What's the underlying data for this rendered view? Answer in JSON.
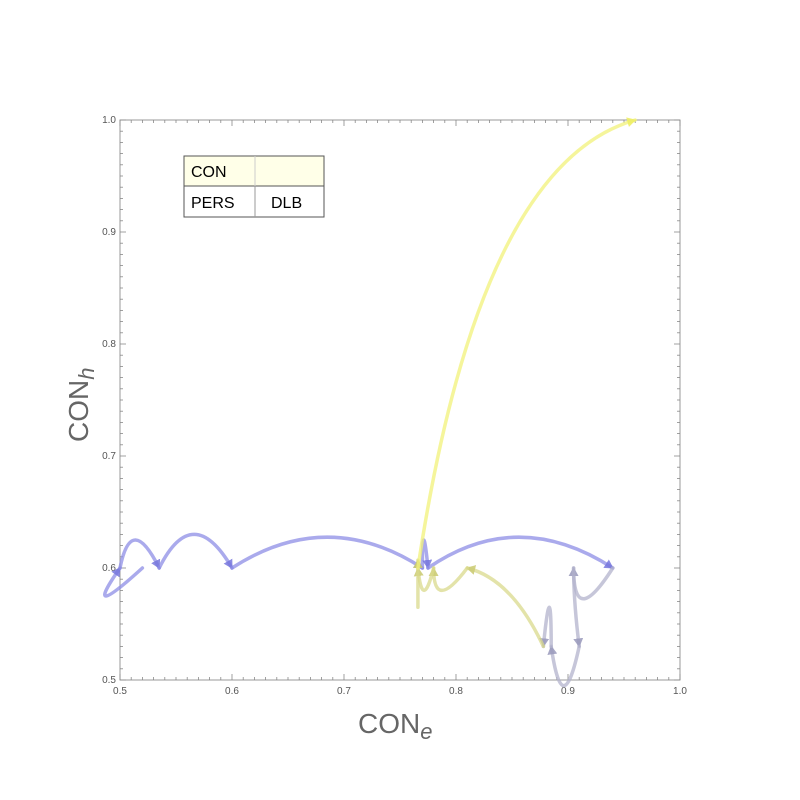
{
  "chart_data": {
    "type": "line",
    "title": "",
    "xlabel": {
      "main": "CON",
      "sub": "e"
    },
    "ylabel": {
      "main": "CON",
      "sub": "h"
    },
    "xlim": [
      0.5,
      1.0
    ],
    "ylim": [
      0.5,
      1.0
    ],
    "x_ticks": [
      "0.5",
      "0.6",
      "0.7",
      "0.8",
      "0.9",
      "1.0"
    ],
    "y_ticks": [
      "0.5",
      "0.6",
      "0.7",
      "0.8",
      "0.9",
      "1.0"
    ],
    "grid": false,
    "legend": {
      "placement": "top-left",
      "rows": [
        [
          "CON",
          ""
        ],
        [
          "PERS",
          "DLB"
        ]
      ]
    },
    "series": [
      {
        "color": "#8e8ee6",
        "arrows": [
          {
            "points": [
              [
                0.52,
                0.6
              ],
              [
                0.465,
                0.55
              ],
              [
                0.5,
                0.6
              ]
            ]
          },
          {
            "points": [
              [
                0.5,
                0.6
              ],
              [
                0.51,
                0.65
              ],
              [
                0.535,
                0.6
              ]
            ]
          },
          {
            "points": [
              [
                0.535,
                0.6
              ],
              [
                0.565,
                0.66
              ],
              [
                0.6,
                0.6
              ]
            ]
          },
          {
            "points": [
              [
                0.6,
                0.6
              ],
              [
                0.685,
                0.655
              ],
              [
                0.77,
                0.6
              ]
            ]
          },
          {
            "points": [
              [
                0.77,
                0.6
              ],
              [
                0.77,
                0.65
              ],
              [
                0.775,
                0.6
              ]
            ]
          },
          {
            "points": [
              [
                0.775,
                0.6
              ],
              [
                0.855,
                0.655
              ],
              [
                0.94,
                0.6
              ]
            ]
          }
        ]
      },
      {
        "color": "#b3b3cc",
        "arrows": [
          {
            "points": [
              [
                0.94,
                0.6
              ],
              [
                0.905,
                0.545
              ],
              [
                0.905,
                0.6
              ]
            ]
          },
          {
            "points": [
              [
                0.905,
                0.6
              ],
              [
                0.905,
                0.57
              ],
              [
                0.91,
                0.53
              ]
            ]
          },
          {
            "points": [
              [
                0.91,
                0.53
              ],
              [
                0.895,
                0.46
              ],
              [
                0.885,
                0.53
              ]
            ]
          },
          {
            "points": [
              [
                0.885,
                0.53
              ],
              [
                0.885,
                0.6
              ],
              [
                0.878,
                0.53
              ]
            ]
          }
        ]
      },
      {
        "color": "#d9d98c",
        "arrows": [
          {
            "points": [
              [
                0.878,
                0.53
              ],
              [
                0.85,
                0.59
              ],
              [
                0.81,
                0.6
              ]
            ]
          },
          {
            "points": [
              [
                0.81,
                0.6
              ],
              [
                0.78,
                0.56
              ],
              [
                0.78,
                0.6
              ]
            ]
          },
          {
            "points": [
              [
                0.78,
                0.6
              ],
              [
                0.77,
                0.56
              ],
              [
                0.766,
                0.6
              ]
            ]
          },
          {
            "points": [
              [
                0.766,
                0.565
              ],
              [
                0.766,
                0.585
              ],
              [
                0.766,
                0.607
              ]
            ]
          }
        ]
      },
      {
        "color": "#f2f27a",
        "arrows": [
          {
            "points": [
              [
                0.766,
                0.6
              ],
              [
                0.82,
                0.96
              ],
              [
                0.96,
                1.0
              ]
            ]
          }
        ]
      }
    ]
  }
}
